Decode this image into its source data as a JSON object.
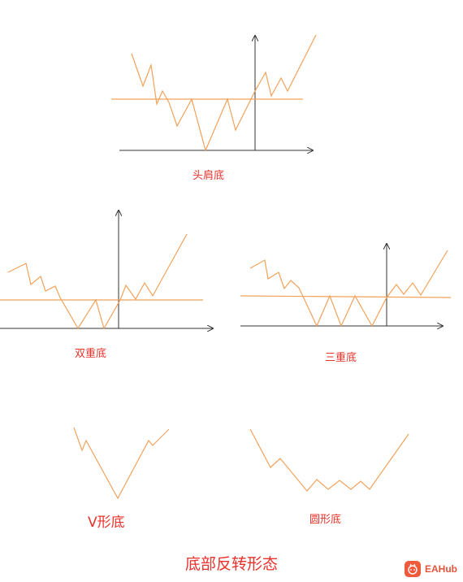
{
  "diagram": {
    "colors": {
      "pattern_line": "#f2a25b",
      "axis": "#333333",
      "label": "#e8322b",
      "brand": "#ef5a3c"
    },
    "patterns": [
      {
        "id": "head-shoulders",
        "label": "头肩底"
      },
      {
        "id": "double-bottom",
        "label": "双重底"
      },
      {
        "id": "triple-bottom",
        "label": "三重底"
      },
      {
        "id": "v-bottom",
        "label": "V形底"
      },
      {
        "id": "rounded-bottom",
        "label": "圆形底"
      }
    ],
    "title": "底部反转形态",
    "watermark": {
      "text": "EAHub",
      "icon": "eahub-logo-icon"
    }
  }
}
